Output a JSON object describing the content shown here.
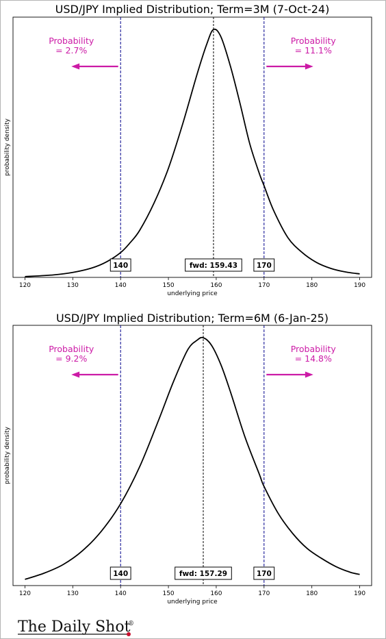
{
  "brand": {
    "name": "The Daily Shot",
    "registered": "®"
  },
  "chart_data": [
    {
      "type": "line",
      "title": "USD/JPY Implied Distribution; Term=3M (7-Oct-24)",
      "xlabel": "underlying price",
      "ylabel": "probability density",
      "xlim": [
        117.5,
        192.5
      ],
      "ylim": [
        0,
        1.05
      ],
      "x_ticks": [
        120,
        130,
        140,
        150,
        160,
        170,
        180,
        190
      ],
      "series": [
        {
          "x": [
            120,
            126,
            130,
            134,
            137,
            140,
            142,
            144,
            147,
            150,
            153,
            156,
            158,
            159.43,
            161,
            163,
            165,
            167,
            169,
            170,
            172,
            175,
            178,
            181,
            184,
            187,
            190
          ],
          "y": [
            0.003,
            0.01,
            0.02,
            0.038,
            0.062,
            0.1,
            0.14,
            0.19,
            0.3,
            0.44,
            0.62,
            0.82,
            0.94,
            1.0,
            0.97,
            0.85,
            0.7,
            0.54,
            0.42,
            0.37,
            0.27,
            0.16,
            0.1,
            0.06,
            0.036,
            0.022,
            0.014
          ]
        }
      ],
      "vlines": [
        140,
        159.43,
        170
      ],
      "boxes": [
        "140",
        "fwd: 159.43",
        "170"
      ],
      "annotations": {
        "left": {
          "line1": "Probability",
          "line2": "= 2.7%"
        },
        "right": {
          "line1": "Probability",
          "line2": "= 11.1%"
        }
      },
      "colors": {
        "curve": "#000000",
        "strike_line": "#00008b",
        "fwd_line": "#000000",
        "annotation": "#cc1aa6"
      }
    },
    {
      "type": "line",
      "title": "USD/JPY Implied Distribution; Term=6M (6-Jan-25)",
      "xlabel": "underlying price",
      "ylabel": "probability density",
      "xlim": [
        117.5,
        192.5
      ],
      "ylim": [
        0,
        1.05
      ],
      "x_ticks": [
        120,
        130,
        140,
        150,
        160,
        170,
        180,
        190
      ],
      "series": [
        {
          "x": [
            120,
            124,
            128,
            132,
            136,
            140,
            144,
            148,
            151,
            154,
            156,
            157.29,
            159,
            161,
            163,
            166,
            169,
            170,
            173,
            176,
            179,
            182,
            185,
            188,
            190
          ],
          "y": [
            0.025,
            0.05,
            0.085,
            0.14,
            0.22,
            0.33,
            0.48,
            0.67,
            0.82,
            0.95,
            0.99,
            1.0,
            0.97,
            0.89,
            0.78,
            0.6,
            0.45,
            0.4,
            0.29,
            0.21,
            0.15,
            0.11,
            0.077,
            0.054,
            0.045
          ]
        }
      ],
      "vlines": [
        140,
        157.29,
        170
      ],
      "boxes": [
        "140",
        "fwd: 157.29",
        "170"
      ],
      "annotations": {
        "left": {
          "line1": "Probability",
          "line2": "= 9.2%"
        },
        "right": {
          "line1": "Probability",
          "line2": "= 14.8%"
        }
      },
      "colors": {
        "curve": "#000000",
        "strike_line": "#00008b",
        "fwd_line": "#000000",
        "annotation": "#cc1aa6"
      }
    }
  ]
}
